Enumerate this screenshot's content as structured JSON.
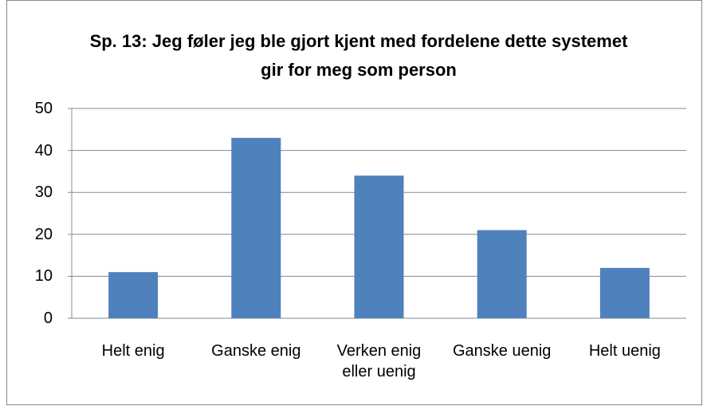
{
  "chart_data": {
    "type": "bar",
    "title": "Sp. 13: Jeg føler jeg ble gjort kjent med fordelene dette systemet gir for meg som person",
    "categories": [
      "Helt enig",
      "Ganske enig",
      "Verken enig eller uenig",
      "Ganske uenig",
      "Helt uenig"
    ],
    "values": [
      11,
      43,
      34,
      21,
      12
    ],
    "color": "#4f81bd",
    "ylim": [
      0,
      50
    ],
    "yticks": [
      0,
      10,
      20,
      30,
      40,
      50
    ],
    "grid": true
  }
}
